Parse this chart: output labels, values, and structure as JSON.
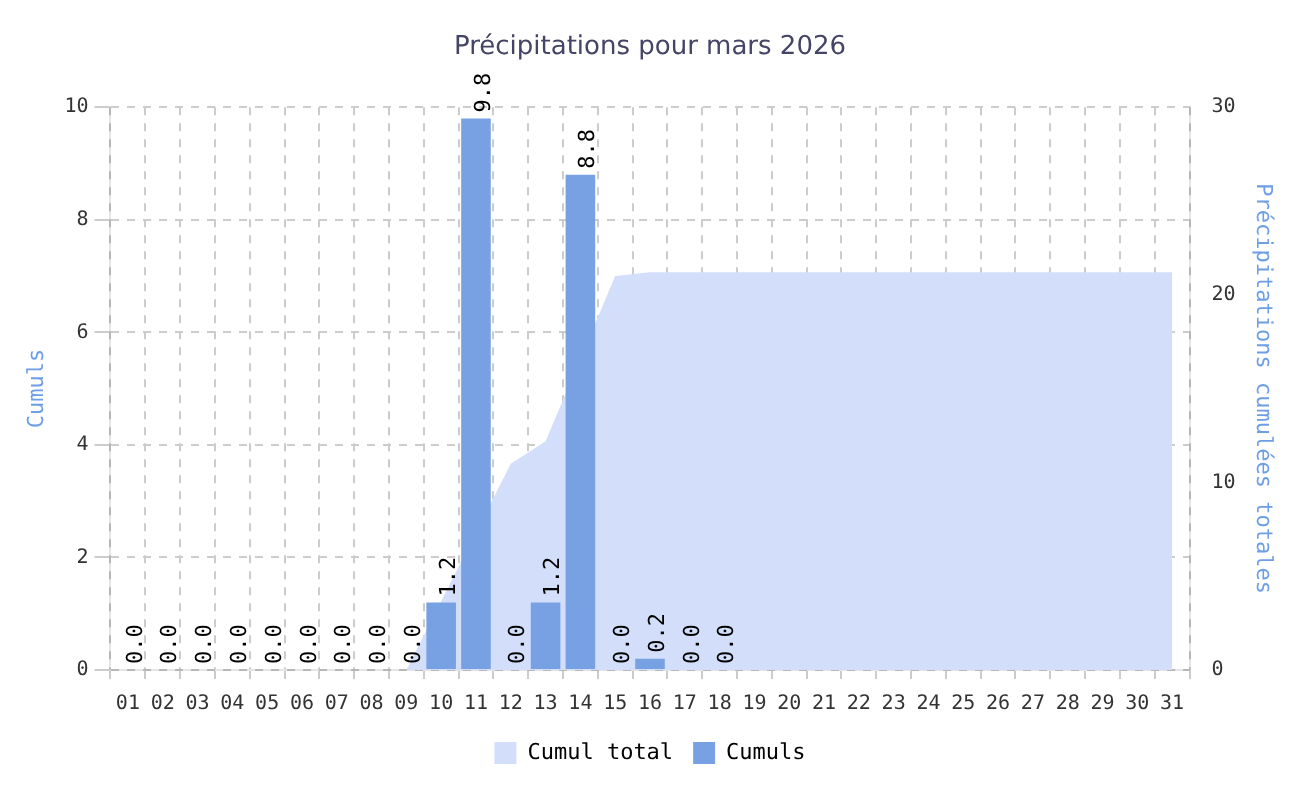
{
  "chart_data": {
    "type": "bar",
    "title": "Précipitations pour mars 2026",
    "ylabel": "Cumuls",
    "y2label": "Précipitations cumulées totales",
    "categories": [
      "01",
      "02",
      "03",
      "04",
      "05",
      "06",
      "07",
      "08",
      "09",
      "10",
      "11",
      "12",
      "13",
      "14",
      "15",
      "16",
      "17",
      "18",
      "19",
      "20",
      "21",
      "22",
      "23",
      "24",
      "25",
      "26",
      "27",
      "28",
      "29",
      "30",
      "31"
    ],
    "series": [
      {
        "name": "Cumul total",
        "type": "area",
        "axis": "y2",
        "color": "#d3dffa",
        "values": [
          0,
          0,
          0,
          0,
          0,
          0,
          0,
          0,
          0,
          null,
          null,
          11.0,
          12.2,
          null,
          21.0,
          21.2,
          21.2,
          21.2,
          21.2,
          21.2,
          21.2,
          21.2,
          21.2,
          21.2,
          21.2,
          21.2,
          21.2,
          21.2,
          21.2,
          21.2,
          21.2
        ]
      },
      {
        "name": "Cumuls",
        "color": "#77a1e3",
        "values": [
          0,
          0,
          0,
          0,
          0,
          0,
          0,
          0,
          0,
          1.2,
          9.8,
          0,
          1.2,
          8.8,
          0,
          0.2,
          0,
          0,
          null,
          null,
          null,
          null,
          null,
          null,
          null,
          null,
          null,
          null,
          null,
          null,
          null
        ],
        "value_labels": [
          "0.0",
          "0.0",
          "0.0",
          "0.0",
          "0.0",
          "0.0",
          "0.0",
          "0.0",
          "0.0",
          "1.2",
          "9.8",
          "0.0",
          "1.2",
          "8.8",
          "0.0",
          "0.2",
          "0.0",
          "0.0",
          null,
          null,
          null,
          null,
          null,
          null,
          null,
          null,
          null,
          null,
          null,
          null,
          null
        ]
      }
    ],
    "ylim": [
      0,
      10
    ],
    "yticks": [
      0,
      2,
      4,
      6,
      8,
      10
    ],
    "y2lim": [
      0,
      30
    ],
    "y2ticks": [
      0,
      10,
      20,
      30
    ],
    "grid": true,
    "legend": "bottom"
  }
}
